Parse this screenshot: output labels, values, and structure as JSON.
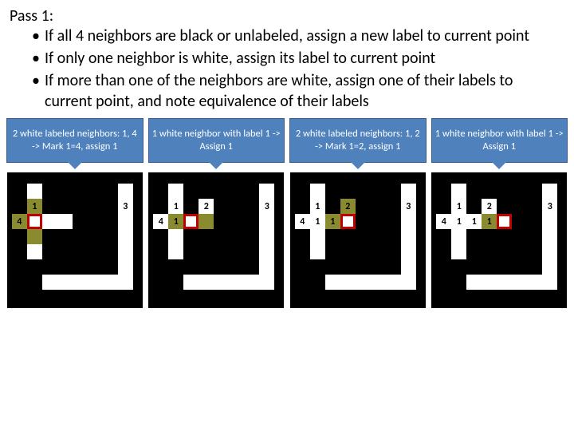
{
  "title": "Pass 1:",
  "bullets": [
    "If all 4 neighbors are black or unlabeled, assign a new label to current point",
    "If only one neighbor is white, assign its label to current point",
    "If more than one of the neighbors are white, assign one of their labels to current point, and note equivalence of their labels"
  ],
  "style": {
    "caption_bg": "#4f81bd",
    "caption_border": "#385d8a",
    "caption_color": "#ffffff",
    "focus_border": "#c00000",
    "olive": "#8a8a2e",
    "white": "#ffffff",
    "black": "#000000",
    "cell_size": 19,
    "grid_size": 170
  },
  "panels": [
    {
      "caption": "2 white labeled neighbors: 1, 4 -> Mark 1=4, assign 1",
      "cells": [
        {
          "r": 0,
          "c": 1,
          "t": "white",
          "label": ""
        },
        {
          "r": 0,
          "c": 7,
          "t": "white",
          "label": ""
        },
        {
          "r": 1,
          "c": 1,
          "t": "olive",
          "label": "1"
        },
        {
          "r": 1,
          "c": 7,
          "t": "white",
          "label": "3"
        },
        {
          "r": 2,
          "c": 0,
          "t": "olive",
          "label": "4"
        },
        {
          "r": 2,
          "c": 1,
          "t": "focus",
          "label": ""
        },
        {
          "r": 2,
          "c": 2,
          "t": "white",
          "label": ""
        },
        {
          "r": 2,
          "c": 3,
          "t": "white",
          "label": ""
        },
        {
          "r": 2,
          "c": 7,
          "t": "white",
          "label": ""
        },
        {
          "r": 3,
          "c": 1,
          "t": "olive",
          "label": ""
        },
        {
          "r": 3,
          "c": 7,
          "t": "white",
          "label": ""
        },
        {
          "r": 4,
          "c": 1,
          "t": "white",
          "label": ""
        },
        {
          "r": 4,
          "c": 7,
          "t": "white",
          "label": ""
        },
        {
          "r": 5,
          "c": 7,
          "t": "white",
          "label": ""
        },
        {
          "r": 6,
          "c": 2,
          "t": "white",
          "label": ""
        },
        {
          "r": 6,
          "c": 3,
          "t": "white",
          "label": ""
        },
        {
          "r": 6,
          "c": 4,
          "t": "white",
          "label": ""
        },
        {
          "r": 6,
          "c": 5,
          "t": "white",
          "label": ""
        },
        {
          "r": 6,
          "c": 6,
          "t": "white",
          "label": ""
        },
        {
          "r": 6,
          "c": 7,
          "t": "white",
          "label": ""
        }
      ]
    },
    {
      "caption": "1 white neighbor with label 1 -> Assign 1",
      "cells": [
        {
          "r": 0,
          "c": 1,
          "t": "white",
          "label": ""
        },
        {
          "r": 0,
          "c": 7,
          "t": "white",
          "label": ""
        },
        {
          "r": 1,
          "c": 1,
          "t": "white",
          "label": "1"
        },
        {
          "r": 1,
          "c": 3,
          "t": "white",
          "label": "2"
        },
        {
          "r": 1,
          "c": 7,
          "t": "white",
          "label": "3"
        },
        {
          "r": 2,
          "c": 0,
          "t": "white",
          "label": "4"
        },
        {
          "r": 2,
          "c": 1,
          "t": "olive",
          "label": "1"
        },
        {
          "r": 2,
          "c": 2,
          "t": "focus",
          "label": ""
        },
        {
          "r": 2,
          "c": 3,
          "t": "olive",
          "label": ""
        },
        {
          "r": 2,
          "c": 7,
          "t": "white",
          "label": ""
        },
        {
          "r": 3,
          "c": 1,
          "t": "white",
          "label": ""
        },
        {
          "r": 3,
          "c": 7,
          "t": "white",
          "label": ""
        },
        {
          "r": 4,
          "c": 1,
          "t": "white",
          "label": ""
        },
        {
          "r": 4,
          "c": 7,
          "t": "white",
          "label": ""
        },
        {
          "r": 5,
          "c": 7,
          "t": "white",
          "label": ""
        },
        {
          "r": 6,
          "c": 2,
          "t": "white",
          "label": ""
        },
        {
          "r": 6,
          "c": 3,
          "t": "white",
          "label": ""
        },
        {
          "r": 6,
          "c": 4,
          "t": "white",
          "label": ""
        },
        {
          "r": 6,
          "c": 5,
          "t": "white",
          "label": ""
        },
        {
          "r": 6,
          "c": 6,
          "t": "white",
          "label": ""
        },
        {
          "r": 6,
          "c": 7,
          "t": "white",
          "label": ""
        }
      ]
    },
    {
      "caption": "2 white labeled neighbors: 1, 2 -> Mark 1=2, assign 1",
      "cells": [
        {
          "r": 0,
          "c": 1,
          "t": "white",
          "label": ""
        },
        {
          "r": 0,
          "c": 7,
          "t": "white",
          "label": ""
        },
        {
          "r": 1,
          "c": 1,
          "t": "white",
          "label": "1"
        },
        {
          "r": 1,
          "c": 3,
          "t": "olive",
          "label": "2"
        },
        {
          "r": 1,
          "c": 7,
          "t": "white",
          "label": "3"
        },
        {
          "r": 2,
          "c": 0,
          "t": "white",
          "label": "4"
        },
        {
          "r": 2,
          "c": 1,
          "t": "white",
          "label": "1"
        },
        {
          "r": 2,
          "c": 2,
          "t": "olive",
          "label": "1"
        },
        {
          "r": 2,
          "c": 3,
          "t": "focus",
          "label": ""
        },
        {
          "r": 2,
          "c": 7,
          "t": "white",
          "label": ""
        },
        {
          "r": 3,
          "c": 1,
          "t": "white",
          "label": ""
        },
        {
          "r": 3,
          "c": 7,
          "t": "white",
          "label": ""
        },
        {
          "r": 4,
          "c": 1,
          "t": "white",
          "label": ""
        },
        {
          "r": 4,
          "c": 7,
          "t": "white",
          "label": ""
        },
        {
          "r": 5,
          "c": 7,
          "t": "white",
          "label": ""
        },
        {
          "r": 6,
          "c": 2,
          "t": "white",
          "label": ""
        },
        {
          "r": 6,
          "c": 3,
          "t": "white",
          "label": ""
        },
        {
          "r": 6,
          "c": 4,
          "t": "white",
          "label": ""
        },
        {
          "r": 6,
          "c": 5,
          "t": "white",
          "label": ""
        },
        {
          "r": 6,
          "c": 6,
          "t": "white",
          "label": ""
        },
        {
          "r": 6,
          "c": 7,
          "t": "white",
          "label": ""
        }
      ]
    },
    {
      "caption": "1 white neighbor with label 1 -> Assign 1",
      "cells": [
        {
          "r": 0,
          "c": 1,
          "t": "white",
          "label": ""
        },
        {
          "r": 0,
          "c": 7,
          "t": "white",
          "label": ""
        },
        {
          "r": 1,
          "c": 1,
          "t": "white",
          "label": "1"
        },
        {
          "r": 1,
          "c": 3,
          "t": "white",
          "label": "2"
        },
        {
          "r": 1,
          "c": 7,
          "t": "white",
          "label": "3"
        },
        {
          "r": 2,
          "c": 0,
          "t": "white",
          "label": "4"
        },
        {
          "r": 2,
          "c": 1,
          "t": "white",
          "label": "1"
        },
        {
          "r": 2,
          "c": 2,
          "t": "white",
          "label": "1"
        },
        {
          "r": 2,
          "c": 3,
          "t": "olive",
          "label": "1"
        },
        {
          "r": 2,
          "c": 4,
          "t": "focus",
          "label": ""
        },
        {
          "r": 2,
          "c": 7,
          "t": "white",
          "label": ""
        },
        {
          "r": 3,
          "c": 1,
          "t": "white",
          "label": ""
        },
        {
          "r": 3,
          "c": 7,
          "t": "white",
          "label": ""
        },
        {
          "r": 4,
          "c": 1,
          "t": "white",
          "label": ""
        },
        {
          "r": 4,
          "c": 7,
          "t": "white",
          "label": ""
        },
        {
          "r": 5,
          "c": 7,
          "t": "white",
          "label": ""
        },
        {
          "r": 6,
          "c": 2,
          "t": "white",
          "label": ""
        },
        {
          "r": 6,
          "c": 3,
          "t": "white",
          "label": ""
        },
        {
          "r": 6,
          "c": 4,
          "t": "white",
          "label": ""
        },
        {
          "r": 6,
          "c": 5,
          "t": "white",
          "label": ""
        },
        {
          "r": 6,
          "c": 6,
          "t": "white",
          "label": ""
        },
        {
          "r": 6,
          "c": 7,
          "t": "white",
          "label": ""
        }
      ]
    }
  ]
}
